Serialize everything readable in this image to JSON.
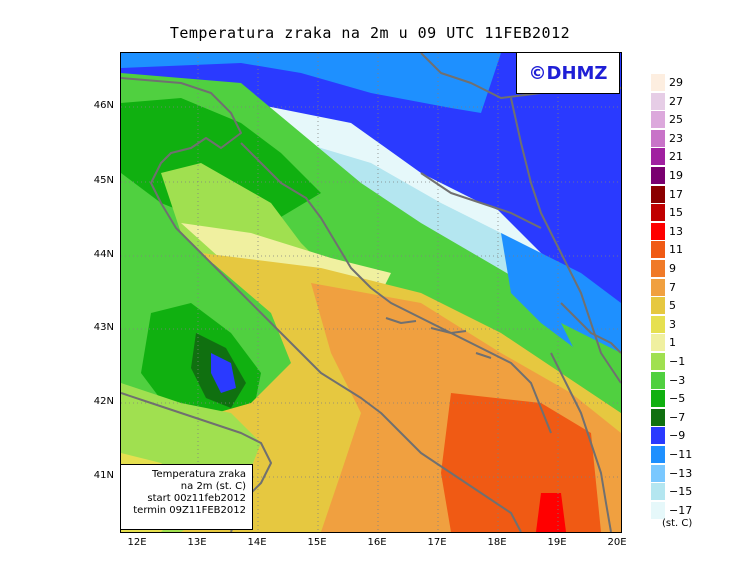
{
  "title": "Temperatura zraka na 2m u 09 UTC 11FEB2012",
  "logo": "©DHMZ",
  "info_box": {
    "line1": "Temperatura zraka",
    "line2": "na 2m (st. C)",
    "line3": "start 00z11feb2012",
    "line4": "termin 09Z11FEB2012"
  },
  "latitude_labels": [
    "46N",
    "45N",
    "44N",
    "43N",
    "42N",
    "41N"
  ],
  "longitude_labels": [
    "12E",
    "13E",
    "14E",
    "15E",
    "16E",
    "17E",
    "18E",
    "19E",
    "20E"
  ],
  "legend": {
    "units": "(st. C)",
    "labels": [
      "29",
      "27",
      "25",
      "23",
      "21",
      "19",
      "17",
      "15",
      "13",
      "11",
      "9",
      "7",
      "5",
      "3",
      "1",
      "−1",
      "−3",
      "−5",
      "−7",
      "−9",
      "−11",
      "−13",
      "−15",
      "−17"
    ],
    "colors": [
      "#fdeee0",
      "#e6cde6",
      "#dca8dc",
      "#c873c8",
      "#a020a0",
      "#7a0070",
      "#8b0000",
      "#c00000",
      "#ff0000",
      "#f05a14",
      "#f07a28",
      "#f0a040",
      "#e6c840",
      "#e6e050",
      "#f0f0a0",
      "#a0e050",
      "#50d040",
      "#10b010",
      "#107010",
      "#2a3aff",
      "#1e90ff",
      "#7ac8ff",
      "#b4e6f0",
      "#e6f8fa"
    ]
  },
  "colors": {
    "sea": "#3a7bd5",
    "coastline": "#707070",
    "grid": "#808080"
  }
}
